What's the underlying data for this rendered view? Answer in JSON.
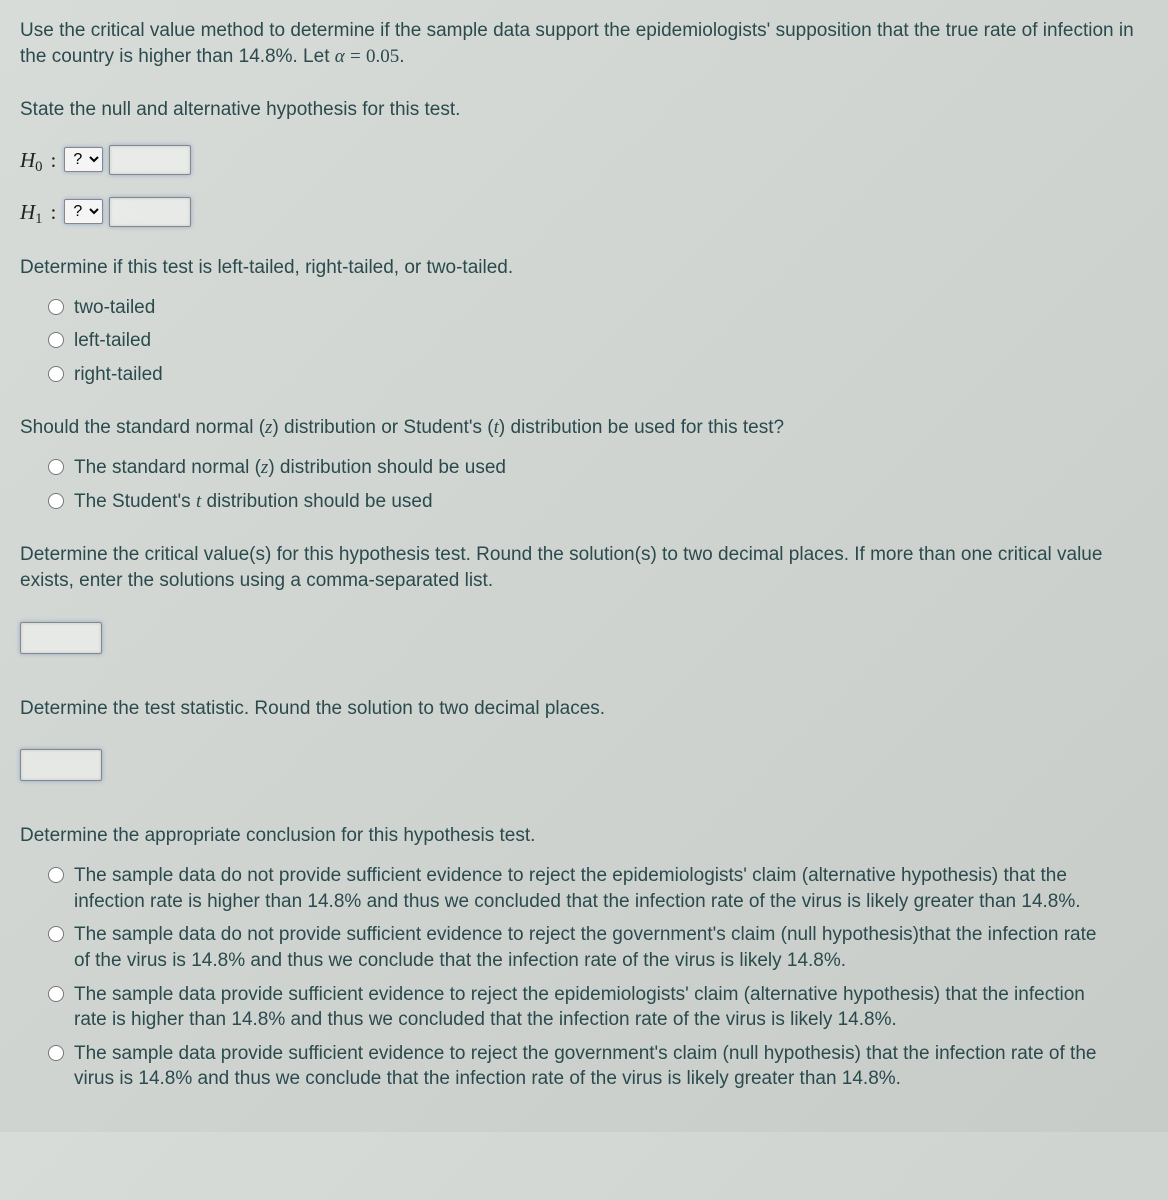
{
  "intro": "Use the critical value method to determine if the sample data support the epidemiologists' supposition that the true rate of infection in the country is higher than 14.8%. Let α = 0.05.",
  "q_hypotheses": "State the null and alternative hypothesis for this test.",
  "h0_label_H": "H",
  "h0_label_sub": "0",
  "h1_label_H": "H",
  "h1_label_sub": "1",
  "colon": ":",
  "dd_placeholder": "?",
  "q_tail": "Determine if this test is left-tailed, right-tailed, or two-tailed.",
  "tail_opts": {
    "a": "two-tailed",
    "b": "left-tailed",
    "c": "right-tailed"
  },
  "q_dist": "Should the standard normal (z) distribution or Student's (t) distribution be used for this test?",
  "dist_opts": {
    "a_pre": "The standard normal (",
    "a_z": "z",
    "a_post": ") distribution should be used",
    "b_pre": "The Student's ",
    "b_t": "t",
    "b_post": " distribution should be used"
  },
  "q_crit": "Determine the critical value(s) for this hypothesis test. Round the solution(s) to two decimal places. If more than one critical value exists, enter the solutions using a comma-separated list.",
  "q_stat": "Determine the test statistic. Round the solution to two decimal places.",
  "q_concl": "Determine the appropriate conclusion for this hypothesis test.",
  "concl_opts": {
    "a": "The sample data do not provide sufficient evidence to reject the epidemiologists' claim (alternative hypothesis) that the infection rate is higher than 14.8% and thus we concluded that the infection rate of the virus is likely greater than 14.8%.",
    "b": "The sample data do not provide sufficient evidence to reject the government's claim (null hypothesis)that the infection rate of the virus is 14.8% and thus we conclude that the infection rate of the virus is likely 14.8%.",
    "c": "The sample data provide sufficient evidence to reject the epidemiologists' claim (alternative hypothesis) that the infection rate is higher than 14.8% and thus we concluded that the infection rate of the virus is likely 14.8%.",
    "d": "The sample data provide sufficient evidence to reject the government's claim (null hypothesis) that the infection rate of the virus is 14.8% and thus we conclude that the infection rate of the virus is likely greater than 14.8%."
  }
}
